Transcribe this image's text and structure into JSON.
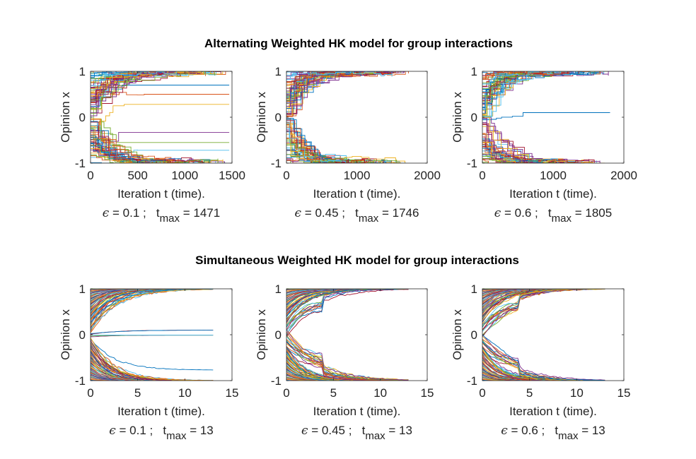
{
  "section_titles": {
    "top": "Alternating Weighted HK model for group interactions",
    "bottom": "Simultaneous Weighted HK model for group interactions"
  },
  "chart_data": [
    {
      "type": "line",
      "model": "alternating",
      "ylabel": "Opinion x",
      "xlabel": "Iteration t (time).",
      "xlim": [
        0,
        1500
      ],
      "ylim": [
        -1,
        1
      ],
      "xticks": [
        "0",
        "500",
        "1000",
        "1500"
      ],
      "yticks": [
        "-1",
        "0",
        "1"
      ],
      "epsilon": "0.1",
      "tmax": "1471",
      "caption": {
        "eps_part": " = 0.1 ;   t",
        "sub": "max",
        "tail": " = 1471"
      },
      "series_summary": {
        "count": 100,
        "final_clusters": [
          1,
          0.7,
          0.5,
          0.28,
          -0.33,
          -0.55,
          -0.72,
          -1
        ]
      }
    },
    {
      "type": "line",
      "model": "alternating",
      "ylabel": "Opinion x",
      "xlabel": "Iteration t (time).",
      "xlim": [
        0,
        2000
      ],
      "ylim": [
        -1,
        1
      ],
      "xticks": [
        "0",
        "1000",
        "2000"
      ],
      "yticks": [
        "-1",
        "0",
        "1"
      ],
      "epsilon": "0.45",
      "tmax": "1746",
      "caption": {
        "eps_part": " = 0.45 ;   t",
        "sub": "max",
        "tail": " = 1746"
      },
      "series_summary": {
        "count": 100,
        "final_clusters": [
          1,
          -1
        ]
      }
    },
    {
      "type": "line",
      "model": "alternating",
      "ylabel": "Opinion x",
      "xlabel": "Iteration t (time).",
      "xlim": [
        0,
        2000
      ],
      "ylim": [
        -1,
        1
      ],
      "xticks": [
        "0",
        "1000",
        "2000"
      ],
      "yticks": [
        "-1",
        "0",
        "1"
      ],
      "epsilon": "0.6",
      "tmax": "1805",
      "caption": {
        "eps_part": " = 0.6 ;   t",
        "sub": "max",
        "tail": " = 1805"
      },
      "series_summary": {
        "count": 100,
        "final_clusters": [
          1,
          0.1,
          -1
        ]
      }
    },
    {
      "type": "line",
      "model": "simultaneous",
      "ylabel": "Opinion x",
      "xlabel": "Iteration t (time).",
      "xlim": [
        0,
        15
      ],
      "ylim": [
        -1,
        1
      ],
      "xticks": [
        "0",
        "5",
        "10",
        "15"
      ],
      "yticks": [
        "-1",
        "0",
        "1"
      ],
      "epsilon": "0.1",
      "tmax": "13",
      "caption": {
        "eps_part": " = 0.1 ;   t",
        "sub": "max",
        "tail": " = 13"
      },
      "series_summary": {
        "count": 100,
        "final_clusters": [
          1,
          0.1,
          -0.01,
          -0.77,
          -1
        ]
      }
    },
    {
      "type": "line",
      "model": "simultaneous",
      "ylabel": "Opinion x",
      "xlabel": "Iteration t (time).",
      "xlim": [
        0,
        15
      ],
      "ylim": [
        -1,
        1
      ],
      "xticks": [
        "0",
        "5",
        "10",
        "15"
      ],
      "yticks": [
        "-1",
        "0",
        "1"
      ],
      "epsilon": "0.45",
      "tmax": "13",
      "caption": {
        "eps_part": " = 0.45 ;   t",
        "sub": "max",
        "tail": " = 13"
      },
      "series_summary": {
        "count": 100,
        "final_clusters": [
          1,
          -1
        ]
      }
    },
    {
      "type": "line",
      "model": "simultaneous",
      "ylabel": "Opinion x",
      "xlabel": "Iteration t (time).",
      "xlim": [
        0,
        15
      ],
      "ylim": [
        -1,
        1
      ],
      "xticks": [
        "0",
        "5",
        "10",
        "15"
      ],
      "yticks": [
        "-1",
        "0",
        "1"
      ],
      "epsilon": "0.6",
      "tmax": "13",
      "caption": {
        "eps_part": " = 0.6 ;   t",
        "sub": "max",
        "tail": " = 13"
      },
      "series_summary": {
        "count": 100,
        "final_clusters": [
          1,
          -1
        ]
      }
    }
  ],
  "palette": [
    "#0072bd",
    "#d95319",
    "#edb120",
    "#7e2f8e",
    "#77ac30",
    "#4dbeee",
    "#a2142f"
  ]
}
